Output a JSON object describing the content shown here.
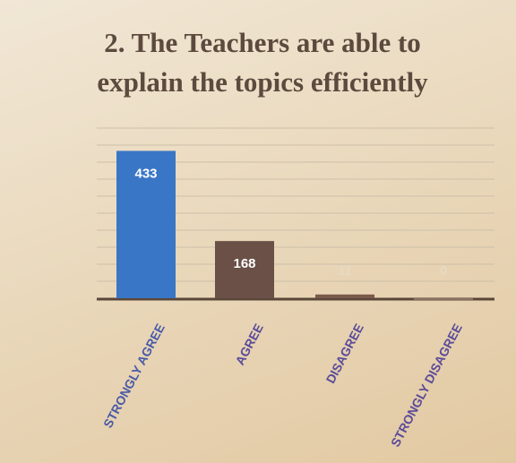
{
  "chart_data": {
    "type": "bar",
    "title": "2. The Teachers are able to explain the topics efficiently",
    "categories": [
      "STRONGLY AGREE",
      "AGREE",
      "DISAGREE",
      "STRONGLY DISAGREE"
    ],
    "values": [
      433,
      168,
      11,
      0
    ],
    "colors": [
      "#3a76c6",
      "#6a5047",
      "#7a5a4a",
      "#8a7060"
    ],
    "ylim": [
      0,
      500
    ],
    "yticks": [
      0,
      50,
      100,
      150,
      200,
      250,
      300,
      350,
      400,
      450,
      500
    ],
    "grid": true
  }
}
